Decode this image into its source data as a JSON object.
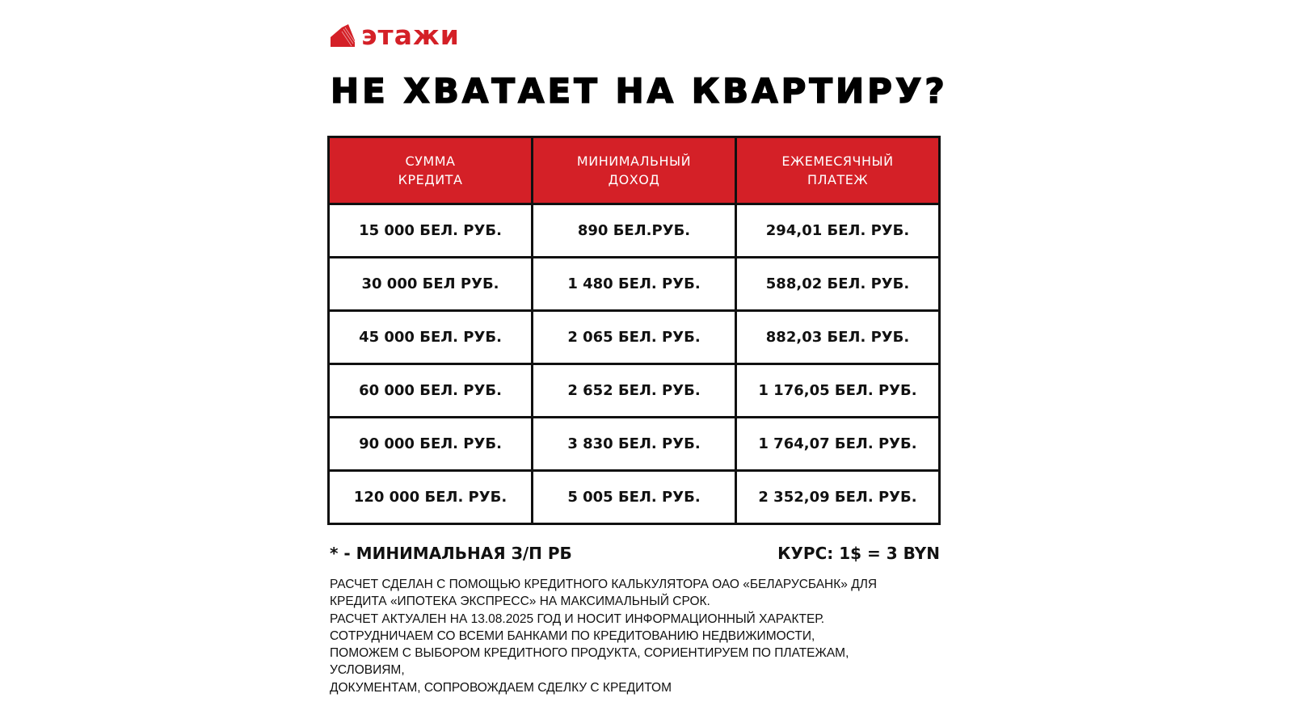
{
  "brand": {
    "name": "этажи",
    "color": "#d42027"
  },
  "title": "НЕ ХВАТАЕТ НА КВАРТИРУ?",
  "table": {
    "headers": [
      [
        "СУММА",
        "КРЕДИТА"
      ],
      [
        "МИНИМАЛЬНЫЙ",
        "ДОХОД"
      ],
      [
        "ЕЖЕМЕСЯЧНЫЙ",
        "ПЛАТЕЖ"
      ]
    ],
    "rows": [
      [
        "15 000 БЕЛ. РУБ.",
        "890 БЕЛ.РУБ.",
        "294,01 БЕЛ. РУБ."
      ],
      [
        "30 000 БЕЛ РУБ.",
        "1 480 БЕЛ. РУБ.",
        "588,02 БЕЛ. РУБ."
      ],
      [
        "45 000 БЕЛ. РУБ.",
        "2 065 БЕЛ. РУБ.",
        "882,03 БЕЛ. РУБ."
      ],
      [
        "60 000 БЕЛ. РУБ.",
        "2 652 БЕЛ. РУБ.",
        "1 176,05 БЕЛ. РУБ."
      ],
      [
        "90 000 БЕЛ. РУБ.",
        "3 830 БЕЛ. РУБ.",
        "1 764,07 БЕЛ. РУБ."
      ],
      [
        "120 000 БЕЛ. РУБ.",
        "5 005 БЕЛ. РУБ.",
        "2 352,09 БЕЛ. РУБ."
      ]
    ]
  },
  "notes": {
    "min_wage": "* - МИНИМАЛЬНАЯ З/П РБ",
    "rate": "КУРС: 1$ = 3 BYN"
  },
  "footer": [
    "РАСЧЕТ СДЕЛАН С ПОМОЩЬЮ КРЕДИТНОГО КАЛЬКУЛЯТОРА ОАО «БЕЛАРУСБАНК» ДЛЯ",
    "КРЕДИТА «ИПОТЕКА ЭКСПРЕСС» НА МАКСИМАЛЬНЫЙ СРОК.",
    "РАСЧЕТ АКТУАЛЕН НА 13.08.2025 ГОД И НОСИТ ИНФОРМАЦИОННЫЙ ХАРАКТЕР.",
    "СОТРУДНИЧАЕМ СО ВСЕМИ БАНКАМИ ПО КРЕДИТОВАНИЮ НЕДВИЖИМОСТИ,",
    "ПОМОЖЕМ С ВЫБОРОМ КРЕДИТНОГО ПРОДУКТА, СОРИЕНТИРУЕМ ПО ПЛАТЕЖАМ,",
    "УСЛОВИЯМ,",
    "ДОКУМЕНТАМ, СОПРОВОЖДАЕМ СДЕЛКУ С КРЕДИТОМ"
  ]
}
